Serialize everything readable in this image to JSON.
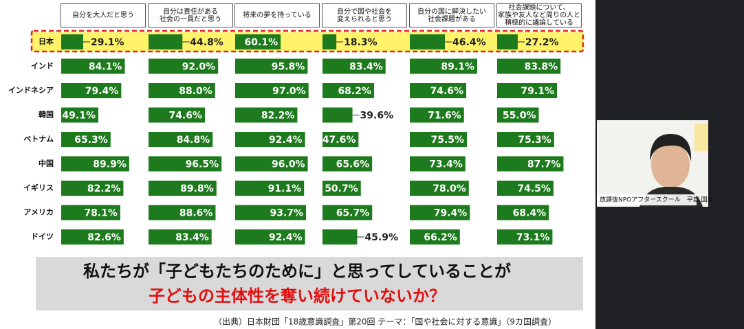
{
  "chart_data": {
    "type": "bar",
    "orientation": "horizontal",
    "categories": [
      "日本",
      "インド",
      "インドネシア",
      "韓国",
      "ベトナム",
      "中国",
      "イギリス",
      "アメリカ",
      "ドイツ"
    ],
    "xlim": [
      0,
      100
    ],
    "series": [
      {
        "name": "自分を大人だと思う",
        "color": "#1d7a1d",
        "values": [
          29.1,
          84.1,
          79.4,
          49.1,
          65.3,
          89.9,
          82.2,
          78.1,
          82.6
        ],
        "value_labels": [
          "29.1%",
          "84.1%",
          "79.4%",
          "49.1%",
          "65.3%",
          "89.9%",
          "82.2%",
          "78.1%",
          "82.6%"
        ]
      },
      {
        "name": "自分は責任がある\n社会の一員だと思う",
        "color": "#1d7a1d",
        "values": [
          44.8,
          92.0,
          88.0,
          74.6,
          84.8,
          96.5,
          89.8,
          88.6,
          83.4
        ],
        "value_labels": [
          "44.8%",
          "92.0%",
          "88.0%",
          "74.6%",
          "84.8%",
          "96.5%",
          "89.8%",
          "88.6%",
          "83.4%"
        ]
      },
      {
        "name": "将来の夢を持っている",
        "color": "#1d7a1d",
        "values": [
          60.1,
          95.8,
          97.0,
          82.2,
          92.4,
          96.0,
          91.1,
          93.7,
          92.4
        ],
        "value_labels": [
          "60.1%",
          "95.8%",
          "97.0%",
          "82.2%",
          "92.4%",
          "96.0%",
          "91.1%",
          "93.7%",
          "92.4%"
        ]
      },
      {
        "name": "自分で国や社会を\n変えられると思う",
        "color": "#1d7a1d",
        "values": [
          18.3,
          83.4,
          68.2,
          39.6,
          47.6,
          65.6,
          50.7,
          65.7,
          45.9
        ],
        "value_labels": [
          "18.3%",
          "83.4%",
          "68.2%",
          "39.6%",
          "47.6%",
          "65.6%",
          "50.7%",
          "65.7%",
          "45.9%"
        ]
      },
      {
        "name": "自分の国に解決したい\n社会課題がある",
        "color": "#1d7a1d",
        "values": [
          46.4,
          89.1,
          74.6,
          71.6,
          75.5,
          73.4,
          78.0,
          79.4,
          66.2
        ],
        "value_labels": [
          "46.4%",
          "89.1%",
          "74.6%",
          "71.6%",
          "75.5%",
          "73.4%",
          "78.0%",
          "79.4%",
          "66.2%"
        ]
      },
      {
        "name": "社会課題について、\n家族や友人など周りの人と\n積極的に議論している",
        "color": "#1d7a1d",
        "values": [
          27.2,
          83.8,
          79.1,
          55.0,
          75.3,
          87.7,
          74.5,
          68.4,
          73.1
        ],
        "value_labels": [
          "27.2%",
          "83.8%",
          "79.1%",
          "55.0%",
          "75.3%",
          "87.7%",
          "74.5%",
          "68.4%",
          "73.1%"
        ]
      }
    ]
  },
  "slide": {
    "message_line1": "私たちが「子どもたちのために」と思ってしていることが",
    "message_line2": "子どもの主体性を奪い続けていないか？",
    "source": "（出典）日本財団「18歳意識調査」第20回 テーマ：「国や社会に対する意識」（9カ国調査）"
  },
  "video": {
    "caption": "放課後NPOアフタースクール　平岩 国泰"
  }
}
